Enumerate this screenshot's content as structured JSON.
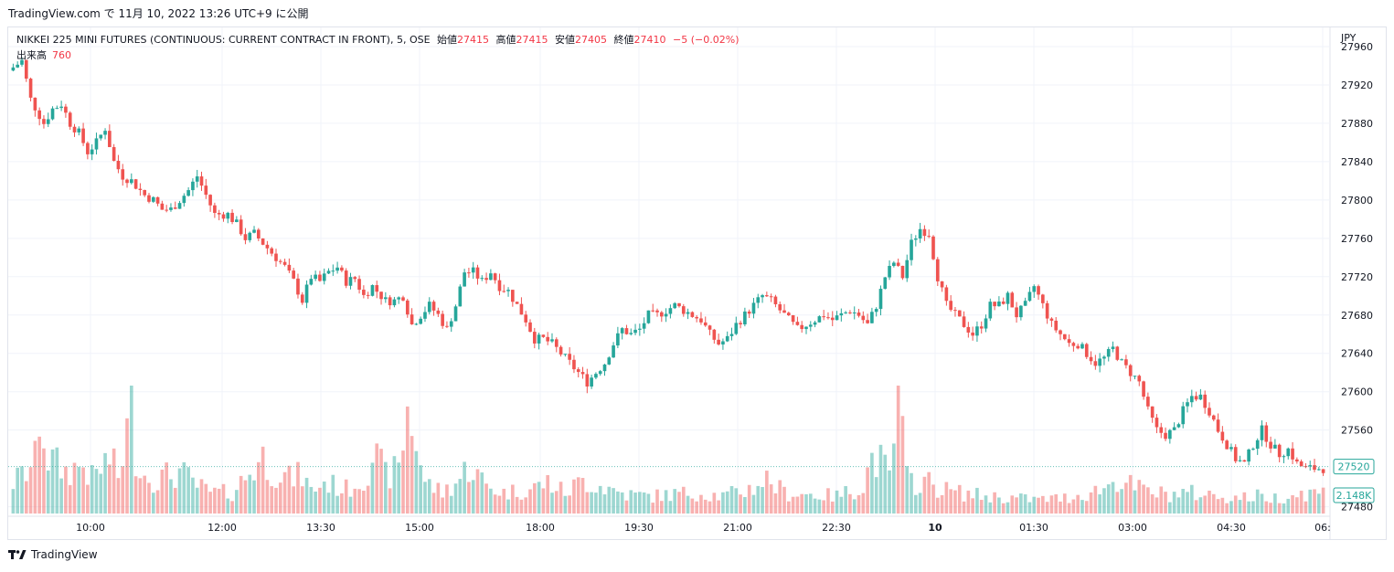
{
  "header": {
    "publish_line": "TradingView.com で 11月 10, 2022 13:26 UTC+9 に公開"
  },
  "legend": {
    "symbol": "NIKKEI 225 MINI FUTURES (CONTINUOUS: CURRENT CONTRACT IN FRONT), 5, OSE",
    "open_label": "始値",
    "open": "27415",
    "high_label": "高値",
    "high": "27415",
    "low_label": "安値",
    "low": "27405",
    "close_label": "終値",
    "close": "27410",
    "change": "−5 (−0.02%)",
    "volume_label": "出来高",
    "volume": "760"
  },
  "footer": {
    "brand": "TradingView"
  },
  "colors": {
    "up": "#26a69a",
    "down": "#ef5350",
    "up_vol": "#26a69a",
    "down_vol": "#ef5350",
    "grid": "#f0f3fa",
    "text": "#131722"
  },
  "chart_data": {
    "type": "candlestick",
    "currency_label": "JPY",
    "y_ticks": [
      "27960",
      "27920",
      "27880",
      "27840",
      "27800",
      "27760",
      "27720",
      "27680",
      "27640",
      "27600",
      "27560",
      "27480"
    ],
    "ylim": [
      27472,
      27980
    ],
    "x_ticks": [
      "10:00",
      "12:00",
      "13:30",
      "15:00",
      "18:00",
      "19:30",
      "21:00",
      "22:30",
      "10",
      "01:30",
      "03:00",
      "04:30",
      "06:"
    ],
    "x_tick_bold": [
      false,
      false,
      false,
      false,
      false,
      false,
      false,
      false,
      true,
      false,
      false,
      false,
      false
    ],
    "price_label": "27520",
    "volume_label": "2.148K",
    "anchors": [
      [
        0,
        27935
      ],
      [
        3,
        27945
      ],
      [
        5,
        27905
      ],
      [
        8,
        27880
      ],
      [
        10,
        27895
      ],
      [
        12,
        27900
      ],
      [
        14,
        27880
      ],
      [
        16,
        27870
      ],
      [
        18,
        27850
      ],
      [
        20,
        27860
      ],
      [
        22,
        27875
      ],
      [
        24,
        27840
      ],
      [
        26,
        27825
      ],
      [
        28,
        27820
      ],
      [
        31,
        27805
      ],
      [
        33,
        27800
      ],
      [
        35,
        27790
      ],
      [
        37,
        27790
      ],
      [
        39,
        27800
      ],
      [
        41,
        27810
      ],
      [
        43,
        27825
      ],
      [
        45,
        27805
      ],
      [
        47,
        27785
      ],
      [
        50,
        27785
      ],
      [
        52,
        27775
      ],
      [
        54,
        27760
      ],
      [
        56,
        27765
      ],
      [
        58,
        27755
      ],
      [
        60,
        27745
      ],
      [
        63,
        27730
      ],
      [
        65,
        27715
      ],
      [
        67,
        27695
      ],
      [
        69,
        27720
      ],
      [
        71,
        27715
      ],
      [
        73,
        27725
      ],
      [
        75,
        27730
      ],
      [
        77,
        27715
      ],
      [
        79,
        27718
      ],
      [
        81,
        27700
      ],
      [
        83,
        27710
      ],
      [
        86,
        27695
      ],
      [
        88,
        27695
      ],
      [
        90,
        27700
      ],
      [
        92,
        27670
      ],
      [
        94,
        27680
      ],
      [
        96,
        27690
      ],
      [
        98,
        27680
      ],
      [
        100,
        27665
      ],
      [
        102,
        27690
      ],
      [
        104,
        27725
      ],
      [
        106,
        27725
      ],
      [
        108,
        27715
      ],
      [
        110,
        27725
      ],
      [
        112,
        27710
      ],
      [
        114,
        27705
      ],
      [
        116,
        27690
      ],
      [
        118,
        27675
      ],
      [
        120,
        27655
      ],
      [
        122,
        27655
      ],
      [
        124,
        27650
      ],
      [
        126,
        27640
      ],
      [
        128,
        27630
      ],
      [
        130,
        27620
      ],
      [
        132,
        27610
      ],
      [
        134,
        27620
      ],
      [
        136,
        27630
      ],
      [
        138,
        27650
      ],
      [
        140,
        27665
      ],
      [
        142,
        27660
      ],
      [
        144,
        27665
      ],
      [
        146,
        27680
      ],
      [
        148,
        27680
      ],
      [
        150,
        27685
      ],
      [
        152,
        27690
      ],
      [
        154,
        27685
      ],
      [
        156,
        27680
      ],
      [
        158,
        27675
      ],
      [
        160,
        27660
      ],
      [
        162,
        27650
      ],
      [
        164,
        27655
      ],
      [
        166,
        27670
      ],
      [
        168,
        27680
      ],
      [
        170,
        27690
      ],
      [
        172,
        27700
      ],
      [
        174,
        27695
      ],
      [
        176,
        27685
      ],
      [
        178,
        27675
      ],
      [
        180,
        27665
      ],
      [
        182,
        27670
      ],
      [
        184,
        27675
      ],
      [
        186,
        27680
      ],
      [
        188,
        27675
      ],
      [
        190,
        27680
      ],
      [
        192,
        27685
      ],
      [
        194,
        27680
      ],
      [
        196,
        27670
      ],
      [
        198,
        27690
      ],
      [
        200,
        27720
      ],
      [
        202,
        27735
      ],
      [
        204,
        27720
      ],
      [
        206,
        27755
      ],
      [
        208,
        27770
      ],
      [
        210,
        27765
      ],
      [
        212,
        27720
      ],
      [
        214,
        27690
      ],
      [
        216,
        27680
      ],
      [
        218,
        27670
      ],
      [
        220,
        27660
      ],
      [
        222,
        27670
      ],
      [
        224,
        27690
      ],
      [
        226,
        27690
      ],
      [
        228,
        27700
      ],
      [
        230,
        27680
      ],
      [
        232,
        27690
      ],
      [
        234,
        27710
      ],
      [
        236,
        27690
      ],
      [
        238,
        27670
      ],
      [
        240,
        27660
      ],
      [
        242,
        27650
      ],
      [
        244,
        27650
      ],
      [
        246,
        27640
      ],
      [
        248,
        27630
      ],
      [
        250,
        27635
      ],
      [
        252,
        27645
      ],
      [
        254,
        27630
      ],
      [
        256,
        27620
      ],
      [
        258,
        27610
      ],
      [
        260,
        27580
      ],
      [
        262,
        27560
      ],
      [
        264,
        27555
      ],
      [
        266,
        27560
      ],
      [
        268,
        27580
      ],
      [
        270,
        27595
      ],
      [
        272,
        27595
      ],
      [
        274,
        27580
      ],
      [
        276,
        27560
      ],
      [
        278,
        27545
      ],
      [
        280,
        27530
      ],
      [
        282,
        27525
      ],
      [
        284,
        27545
      ],
      [
        286,
        27560
      ],
      [
        288,
        27545
      ],
      [
        290,
        27535
      ],
      [
        292,
        27540
      ],
      [
        294,
        27525
      ],
      [
        296,
        27520
      ]
    ],
    "volume_anchors": [
      [
        0,
        180
      ],
      [
        3,
        240
      ],
      [
        5,
        300
      ],
      [
        6,
        600
      ],
      [
        8,
        320
      ],
      [
        12,
        240
      ],
      [
        16,
        280
      ],
      [
        18,
        200
      ],
      [
        22,
        320
      ],
      [
        24,
        210
      ],
      [
        27,
        600
      ],
      [
        28,
        360
      ],
      [
        30,
        220
      ],
      [
        33,
        200
      ],
      [
        38,
        240
      ],
      [
        42,
        160
      ],
      [
        45,
        120
      ],
      [
        50,
        120
      ],
      [
        54,
        240
      ],
      [
        57,
        320
      ],
      [
        59,
        260
      ],
      [
        63,
        200
      ],
      [
        66,
        220
      ],
      [
        68,
        130
      ],
      [
        71,
        180
      ],
      [
        76,
        140
      ],
      [
        80,
        200
      ],
      [
        82,
        350
      ],
      [
        85,
        220
      ],
      [
        88,
        250
      ],
      [
        90,
        600
      ],
      [
        92,
        420
      ],
      [
        94,
        180
      ],
      [
        98,
        120
      ],
      [
        102,
        200
      ],
      [
        104,
        280
      ],
      [
        108,
        160
      ],
      [
        112,
        120
      ],
      [
        118,
        140
      ],
      [
        122,
        180
      ],
      [
        126,
        120
      ],
      [
        130,
        190
      ],
      [
        134,
        160
      ],
      [
        140,
        110
      ],
      [
        146,
        100
      ],
      [
        150,
        110
      ],
      [
        156,
        120
      ],
      [
        162,
        100
      ],
      [
        168,
        140
      ],
      [
        172,
        200
      ],
      [
        176,
        120
      ],
      [
        182,
        110
      ],
      [
        188,
        100
      ],
      [
        194,
        160
      ],
      [
        196,
        320
      ],
      [
        198,
        300
      ],
      [
        200,
        200
      ],
      [
        202,
        660
      ],
      [
        204,
        200
      ],
      [
        206,
        180
      ],
      [
        208,
        190
      ],
      [
        212,
        140
      ],
      [
        216,
        120
      ],
      [
        222,
        100
      ],
      [
        228,
        90
      ],
      [
        234,
        80
      ],
      [
        240,
        90
      ],
      [
        246,
        120
      ],
      [
        250,
        160
      ],
      [
        252,
        200
      ],
      [
        256,
        150
      ],
      [
        260,
        120
      ],
      [
        264,
        110
      ],
      [
        268,
        120
      ],
      [
        272,
        110
      ],
      [
        276,
        100
      ],
      [
        280,
        90
      ],
      [
        284,
        100
      ],
      [
        288,
        90
      ],
      [
        292,
        110
      ],
      [
        296,
        120
      ]
    ],
    "volume_max": 700,
    "last_volume": "760"
  }
}
